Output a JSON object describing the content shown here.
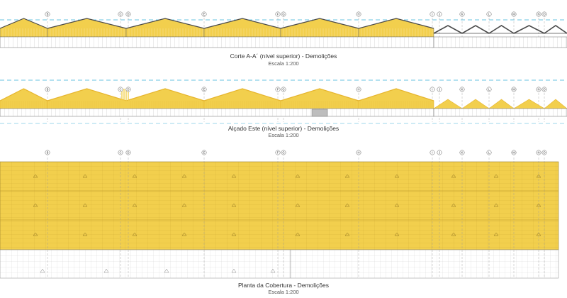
{
  "grid_axes": [
    "B",
    "C",
    "D",
    "E",
    "F",
    "G",
    "H",
    "I",
    "J",
    "K",
    "L",
    "M",
    "N",
    "O"
  ],
  "drawings": [
    {
      "id": "section",
      "title": "Corte A-A´ (nível superior) - Demolições",
      "scale": "Escala 1:200"
    },
    {
      "id": "elevation",
      "title": "Alçado Este (nível superior) - Demolições",
      "scale": "Escala 1:200"
    },
    {
      "id": "roof_plan",
      "title": "Planta da Cobertura - Demolições",
      "scale": "Escala 1:200"
    }
  ],
  "colors": {
    "demolition": "#f2cf4d",
    "demolition_dark": "#e6b52e",
    "outline": "#6d6d6d",
    "steel": "#4a4a4a",
    "level_line": "#3ab0d8",
    "axis_line": "#9a9a9a"
  }
}
